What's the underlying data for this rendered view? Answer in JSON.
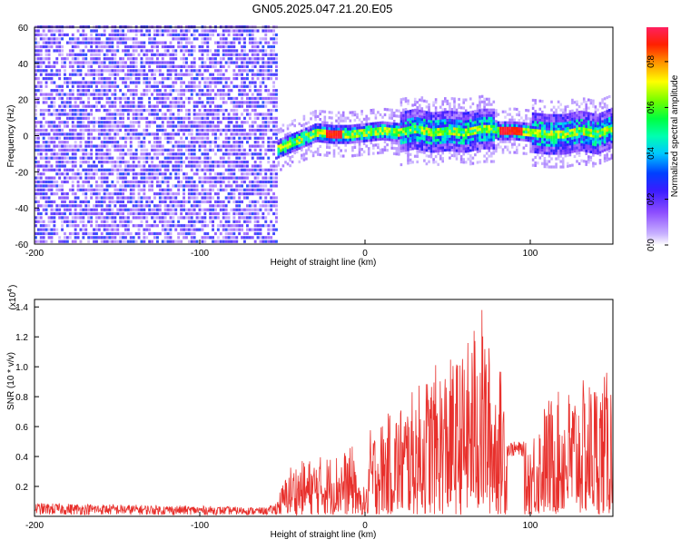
{
  "title": "GN05.2025.047.21.20.E05",
  "chart_data": [
    {
      "type": "heatmap",
      "title": "GN05.2025.047.21.20.E05",
      "xlabel": "Height of straight line (km)",
      "ylabel": "Frequency (Hz)",
      "xlim": [
        -200,
        150
      ],
      "ylim": [
        -60,
        60
      ],
      "xticks": [
        -200,
        -100,
        0,
        100
      ],
      "yticks": [
        60,
        40,
        20,
        0,
        -20,
        -40,
        -60
      ],
      "grid": false,
      "colorbar": {
        "label": "Normalized spectral amplitude",
        "range": [
          0,
          0.95
        ],
        "ticks": [
          0,
          0.2,
          0.4,
          0.6,
          0.8
        ],
        "colormap": "rainbow"
      },
      "regions": [
        {
          "x_range": [
            -200,
            -53
          ],
          "description_value": "broadband noise",
          "amplitude": 0.3
        },
        {
          "x_range": [
            -53,
            150
          ],
          "center_track": [
            [
              -53,
              -8
            ],
            [
              -40,
              -3
            ],
            [
              -30,
              1
            ],
            [
              -20,
              0
            ],
            [
              -10,
              0
            ],
            [
              0,
              1
            ],
            [
              10,
              2
            ],
            [
              20,
              1
            ],
            [
              30,
              3
            ],
            [
              40,
              1
            ],
            [
              50,
              2
            ],
            [
              60,
              1
            ],
            [
              70,
              3
            ],
            [
              78,
              3
            ],
            [
              80,
              2
            ],
            [
              90,
              2
            ],
            [
              100,
              1
            ],
            [
              110,
              0
            ],
            [
              120,
              0
            ],
            [
              130,
              2
            ],
            [
              140,
              0
            ],
            [
              150,
              4
            ]
          ],
          "peak_amplitude": 0.95
        }
      ]
    },
    {
      "type": "line",
      "xlabel": "Height of straight line (km)",
      "ylabel": "SNR (10 * v/v)",
      "y_multiplier": "(x10",
      "y_multiplier_exp": "4",
      "xlim": [
        -200,
        150
      ],
      "ylim": [
        0,
        1.45
      ],
      "xticks": [
        -200,
        -100,
        0,
        100
      ],
      "yticks": [
        0.2,
        0.4,
        0.6,
        0.8,
        1.0,
        1.2,
        1.4
      ],
      "grid": false,
      "series": [
        {
          "color": "#e8302c",
          "envelope": [
            [
              -200,
              0.09
            ],
            [
              -150,
              0.08
            ],
            [
              -100,
              0.07
            ],
            [
              -60,
              0.06
            ],
            [
              -55,
              0.08
            ],
            [
              -45,
              0.35
            ],
            [
              -30,
              0.4
            ],
            [
              -20,
              0.42
            ],
            [
              -10,
              0.45
            ],
            [
              0,
              0.55
            ],
            [
              10,
              0.65
            ],
            [
              20,
              0.75
            ],
            [
              30,
              0.85
            ],
            [
              40,
              1.0
            ],
            [
              50,
              1.05
            ],
            [
              60,
              1.1
            ],
            [
              70,
              1.45
            ],
            [
              78,
              1.0
            ],
            [
              84,
              1.0
            ],
            [
              86,
              0.5
            ],
            [
              95,
              0.45
            ],
            [
              100,
              0.55
            ],
            [
              110,
              0.8
            ],
            [
              120,
              0.85
            ],
            [
              130,
              0.9
            ],
            [
              140,
              0.95
            ],
            [
              150,
              0.98
            ]
          ],
          "plateau": {
            "x_range": [
              86,
              96
            ],
            "y_range": [
              0.4,
              0.5
            ]
          },
          "gap": {
            "x_range": [
              -5,
              2
            ],
            "y_max": 0.2
          }
        }
      ]
    }
  ]
}
